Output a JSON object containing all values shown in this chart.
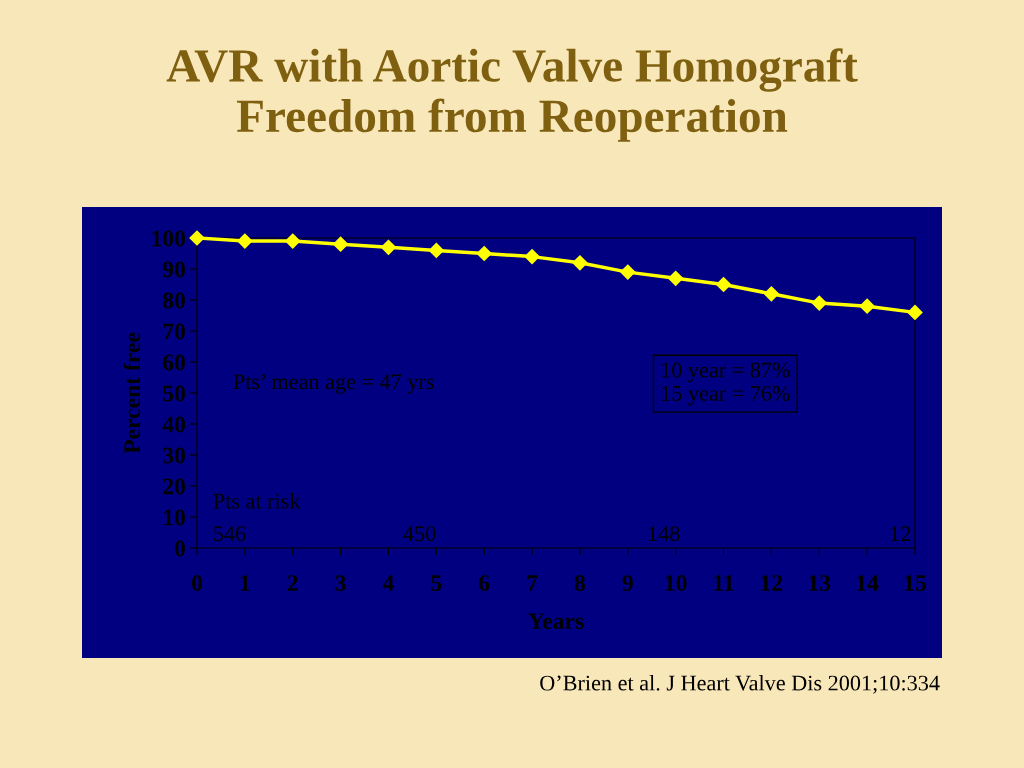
{
  "chart_data": {
    "type": "line",
    "title": "AVR with Aortic Valve Homograft\nFreedom from Reoperation",
    "xlabel": "Years",
    "ylabel": "Percent free",
    "x": [
      0,
      1,
      2,
      3,
      4,
      5,
      6,
      7,
      8,
      9,
      10,
      11,
      12,
      13,
      14,
      15
    ],
    "series": [
      {
        "color": "#ffff00",
        "values": [
          100,
          99,
          99,
          98,
          97,
          96,
          95,
          94,
          92,
          89,
          87,
          85,
          82,
          79,
          78,
          76
        ]
      }
    ],
    "xlim": [
      0,
      15
    ],
    "xticks": [
      0,
      1,
      2,
      3,
      4,
      5,
      6,
      7,
      8,
      9,
      10,
      11,
      12,
      13,
      14,
      15
    ],
    "ylim": [
      0,
      100
    ],
    "yticks": [
      0,
      10,
      20,
      30,
      40,
      50,
      60,
      70,
      80,
      90,
      100
    ],
    "marker": "diamond",
    "line_style": "solid",
    "grid": false,
    "legend": false,
    "annotations": [
      "Pts’ mean age = 47 yrs",
      "10 year = 87%\n15 year = 76%",
      "Pts at risk",
      "546",
      "450",
      "148",
      "12",
      "O’Brien et al. J Heart Valve Dis 2001;10:334"
    ]
  }
}
